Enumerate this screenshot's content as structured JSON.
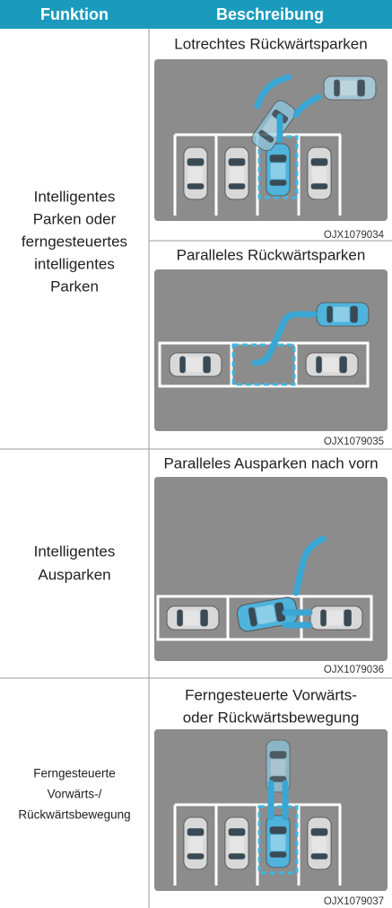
{
  "table": {
    "header": [
      "Funktion",
      "Beschreibung"
    ],
    "rows": [
      {
        "function": [
          "Intelligentes",
          "Parken oder",
          "ferngesteuertes",
          "intelligentes",
          "Parken"
        ],
        "descriptions": [
          {
            "title": [
              "Lotrechtes Rückwärtsparken"
            ],
            "code": "OJX1079034"
          },
          {
            "title": [
              "Paralleles Rückwärtsparken"
            ],
            "code": "OJX1079035"
          }
        ]
      },
      {
        "function": [
          "Intelligentes",
          "Ausparken"
        ],
        "descriptions": [
          {
            "title": [
              "Paralleles Ausparken nach vorn"
            ],
            "code": "OJX1079036"
          }
        ]
      },
      {
        "function": [
          "Ferngesteuerte",
          "Vorwärts-/",
          "Rückwärtsbewegung"
        ],
        "descriptions": [
          {
            "title": [
              "Ferngesteuerte Vorwärts-",
              "oder Rückwärtsbewegung"
            ],
            "code": "OJX1079037"
          }
        ]
      }
    ]
  }
}
